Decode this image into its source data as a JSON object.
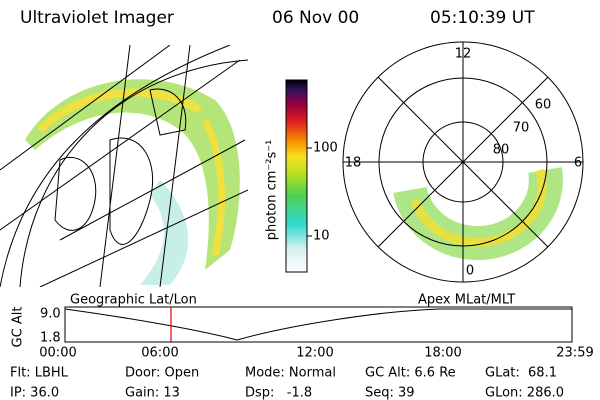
{
  "header": {
    "instrument": "Ultraviolet Imager",
    "date": "06 Nov 00",
    "time": "05:10:39 UT"
  },
  "colorbar": {
    "label": "photon cm⁻²s⁻¹",
    "ticks": [
      "100",
      "10"
    ]
  },
  "polar": {
    "mlt_labels": [
      "12",
      "18",
      "6",
      "0"
    ],
    "lat_labels": [
      "60",
      "70",
      "80"
    ]
  },
  "altitude_plot": {
    "left_title": "Geographic Lat/Lon",
    "right_title": "Apex MLat/MLT",
    "axis_label": "GC Alt",
    "yticks": [
      "9.0",
      "1.8"
    ],
    "xticks": [
      "00:00",
      "06:00",
      "12:00",
      "18:00",
      "23:59"
    ]
  },
  "footer": {
    "rows": [
      [
        "Flt: LBHL",
        "Door: Open",
        "Mode: Normal",
        "GC Alt: 6.6 Re",
        "GLat:  68.1"
      ],
      [
        "IP: 36.0",
        "Gain: 13",
        "Dsp:   -1.8",
        "Seq: 39",
        "GLon: 286.0"
      ]
    ]
  }
}
